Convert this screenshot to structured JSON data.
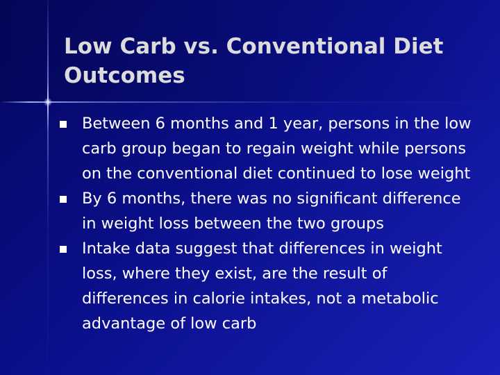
{
  "slide": {
    "title": "Low Carb vs. Conventional Diet Outcomes",
    "bullets": [
      "Between 6 months and 1 year, persons in the low carb group began to regain weight while persons on the conventional diet continued to lose weight",
      "By 6 months, there was no significant difference in weight loss between the two groups",
      "Intake data suggest that differences in weight loss, where they exist, are the result of differences in calorie intakes, not a metabolic advantage of low carb"
    ]
  },
  "theme": {
    "background": "#0a0f8a",
    "title_color": "#dcdcdc",
    "text_color": "#ffffff",
    "bullet_icon": "square-bullet-icon"
  }
}
